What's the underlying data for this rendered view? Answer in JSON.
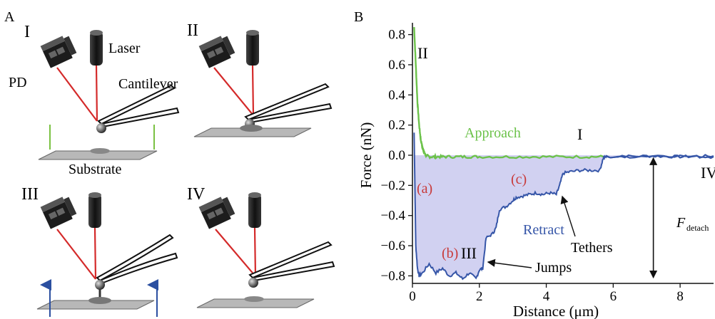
{
  "panel_a": {
    "label": "A",
    "roman": [
      "I",
      "II",
      "III",
      "IV"
    ],
    "labels": {
      "laser": "Laser",
      "pd": "PD",
      "cantilever": "Cantilever",
      "substrate": "Substrate"
    },
    "colors": {
      "laser_beam": "#d42a2a",
      "green_bar": "#7ac142",
      "blue_arrow": "#2b4fa0",
      "head_dark": "#1f1f1f",
      "substrate": "#b8b8b8"
    }
  },
  "panel_b": {
    "label": "B",
    "annotations": {
      "approach": "Approach",
      "retract": "Retract",
      "tethers": "Tethers",
      "jumps": "Jumps",
      "roman_ii": "II",
      "roman_i": "I",
      "roman_iii": "III",
      "roman_iv": "IV",
      "a": "(a)",
      "b": "(b)",
      "c": "(c)",
      "f_detach_main": "F",
      "f_detach_sub": "detach"
    },
    "colors": {
      "approach": "#6cc24a",
      "retract": "#3656a8",
      "fill": "#c9c9ee",
      "letters": "#c83a3a"
    }
  },
  "chart_data": {
    "type": "line",
    "xlabel": "Distance (μm)",
    "ylabel": "Force (nN)",
    "xlim": [
      0,
      9
    ],
    "ylim": [
      -0.85,
      0.85
    ],
    "xticks": [
      0,
      2,
      4,
      6,
      8
    ],
    "yticks": [
      0.8,
      0.6,
      0.4,
      0.2,
      0.0,
      -0.2,
      -0.4,
      -0.6,
      -0.8
    ],
    "ytick_labels": [
      "0.8",
      "0.6",
      "0.4",
      "0.2",
      "0.0",
      "−0.2",
      "−0.4",
      "−0.6",
      "−0.8"
    ],
    "grid": false,
    "series": [
      {
        "name": "Approach",
        "x": [
          0.05,
          0.1,
          0.15,
          0.2,
          0.25,
          0.3,
          0.35,
          0.4,
          0.5,
          0.7,
          1.0,
          1.5,
          2.0,
          3.0,
          4.0,
          5.0,
          5.7
        ],
        "y": [
          0.85,
          0.6,
          0.35,
          0.2,
          0.1,
          0.05,
          0.02,
          0.0,
          -0.01,
          -0.01,
          -0.01,
          -0.01,
          -0.01,
          -0.01,
          -0.01,
          -0.01,
          -0.01
        ]
      },
      {
        "name": "Retract",
        "x": [
          0.05,
          0.08,
          0.1,
          0.15,
          0.2,
          0.3,
          0.5,
          0.7,
          0.9,
          1.1,
          1.3,
          1.5,
          1.7,
          1.9,
          2.0,
          2.1,
          2.2,
          2.4,
          2.5,
          2.6,
          2.8,
          3.0,
          3.1,
          3.3,
          3.5,
          3.7,
          3.9,
          4.1,
          4.3,
          4.4,
          4.5,
          4.7,
          5.0,
          5.3,
          5.6,
          5.7,
          5.8,
          6.5,
          7.5,
          8.5,
          9.0
        ],
        "y": [
          0.15,
          -0.3,
          -0.6,
          -0.75,
          -0.8,
          -0.78,
          -0.72,
          -0.78,
          -0.75,
          -0.8,
          -0.78,
          -0.82,
          -0.78,
          -0.82,
          -0.76,
          -0.75,
          -0.55,
          -0.52,
          -0.48,
          -0.36,
          -0.34,
          -0.3,
          -0.28,
          -0.27,
          -0.26,
          -0.25,
          -0.26,
          -0.25,
          -0.26,
          -0.2,
          -0.12,
          -0.11,
          -0.1,
          -0.1,
          -0.1,
          -0.02,
          -0.01,
          -0.01,
          0.0,
          -0.01,
          -0.01
        ]
      }
    ]
  }
}
